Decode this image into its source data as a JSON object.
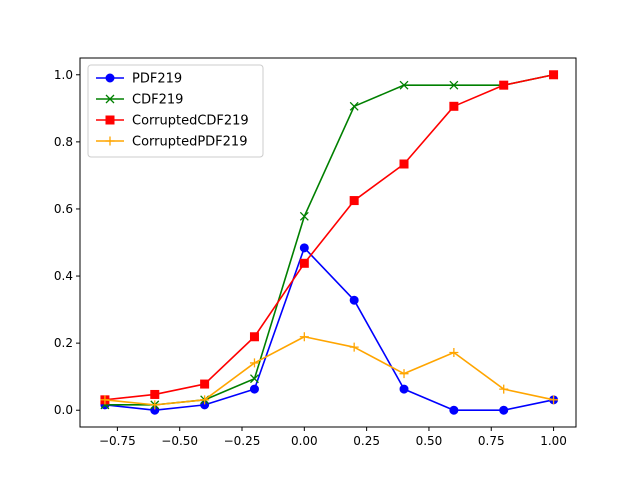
{
  "chart_data": {
    "type": "line",
    "title": "",
    "xlabel": "",
    "ylabel": "",
    "x": [
      -0.8,
      -0.6,
      -0.4,
      -0.2,
      0.0,
      0.2,
      0.4,
      0.6,
      0.8,
      1.0
    ],
    "xlim": [
      -0.9,
      1.09
    ],
    "ylim": [
      -0.05,
      1.05
    ],
    "xticks": [
      -0.75,
      -0.5,
      -0.25,
      0.0,
      0.25,
      0.5,
      0.75,
      1.0
    ],
    "xtick_labels": [
      "−0.75",
      "−0.50",
      "−0.25",
      "0.00",
      "0.25",
      "0.50",
      "0.75",
      "1.00"
    ],
    "yticks": [
      0.0,
      0.2,
      0.4,
      0.6,
      0.8,
      1.0
    ],
    "ytick_labels": [
      "0.0",
      "0.2",
      "0.4",
      "0.6",
      "0.8",
      "1.0"
    ],
    "grid": false,
    "legend_position": "top-left",
    "series": [
      {
        "name": "PDF219",
        "color": "#0000ff",
        "marker": "circle",
        "values": [
          0.016,
          0.0,
          0.016,
          0.063,
          0.484,
          0.328,
          0.063,
          0.0,
          0.0,
          0.031
        ]
      },
      {
        "name": "CDF219",
        "color": "#008000",
        "marker": "x",
        "values": [
          0.016,
          0.016,
          0.031,
          0.094,
          0.578,
          0.906,
          0.969,
          0.969,
          0.969,
          1.0
        ]
      },
      {
        "name": "CorruptedCDF219",
        "color": "#ff0000",
        "marker": "square",
        "values": [
          0.031,
          0.047,
          0.078,
          0.219,
          0.438,
          0.625,
          0.734,
          0.906,
          0.969,
          1.0
        ]
      },
      {
        "name": "CorruptedPDF219",
        "color": "#ffa500",
        "marker": "plus",
        "values": [
          0.031,
          0.016,
          0.031,
          0.141,
          0.219,
          0.188,
          0.109,
          0.172,
          0.063,
          0.031
        ]
      }
    ]
  }
}
